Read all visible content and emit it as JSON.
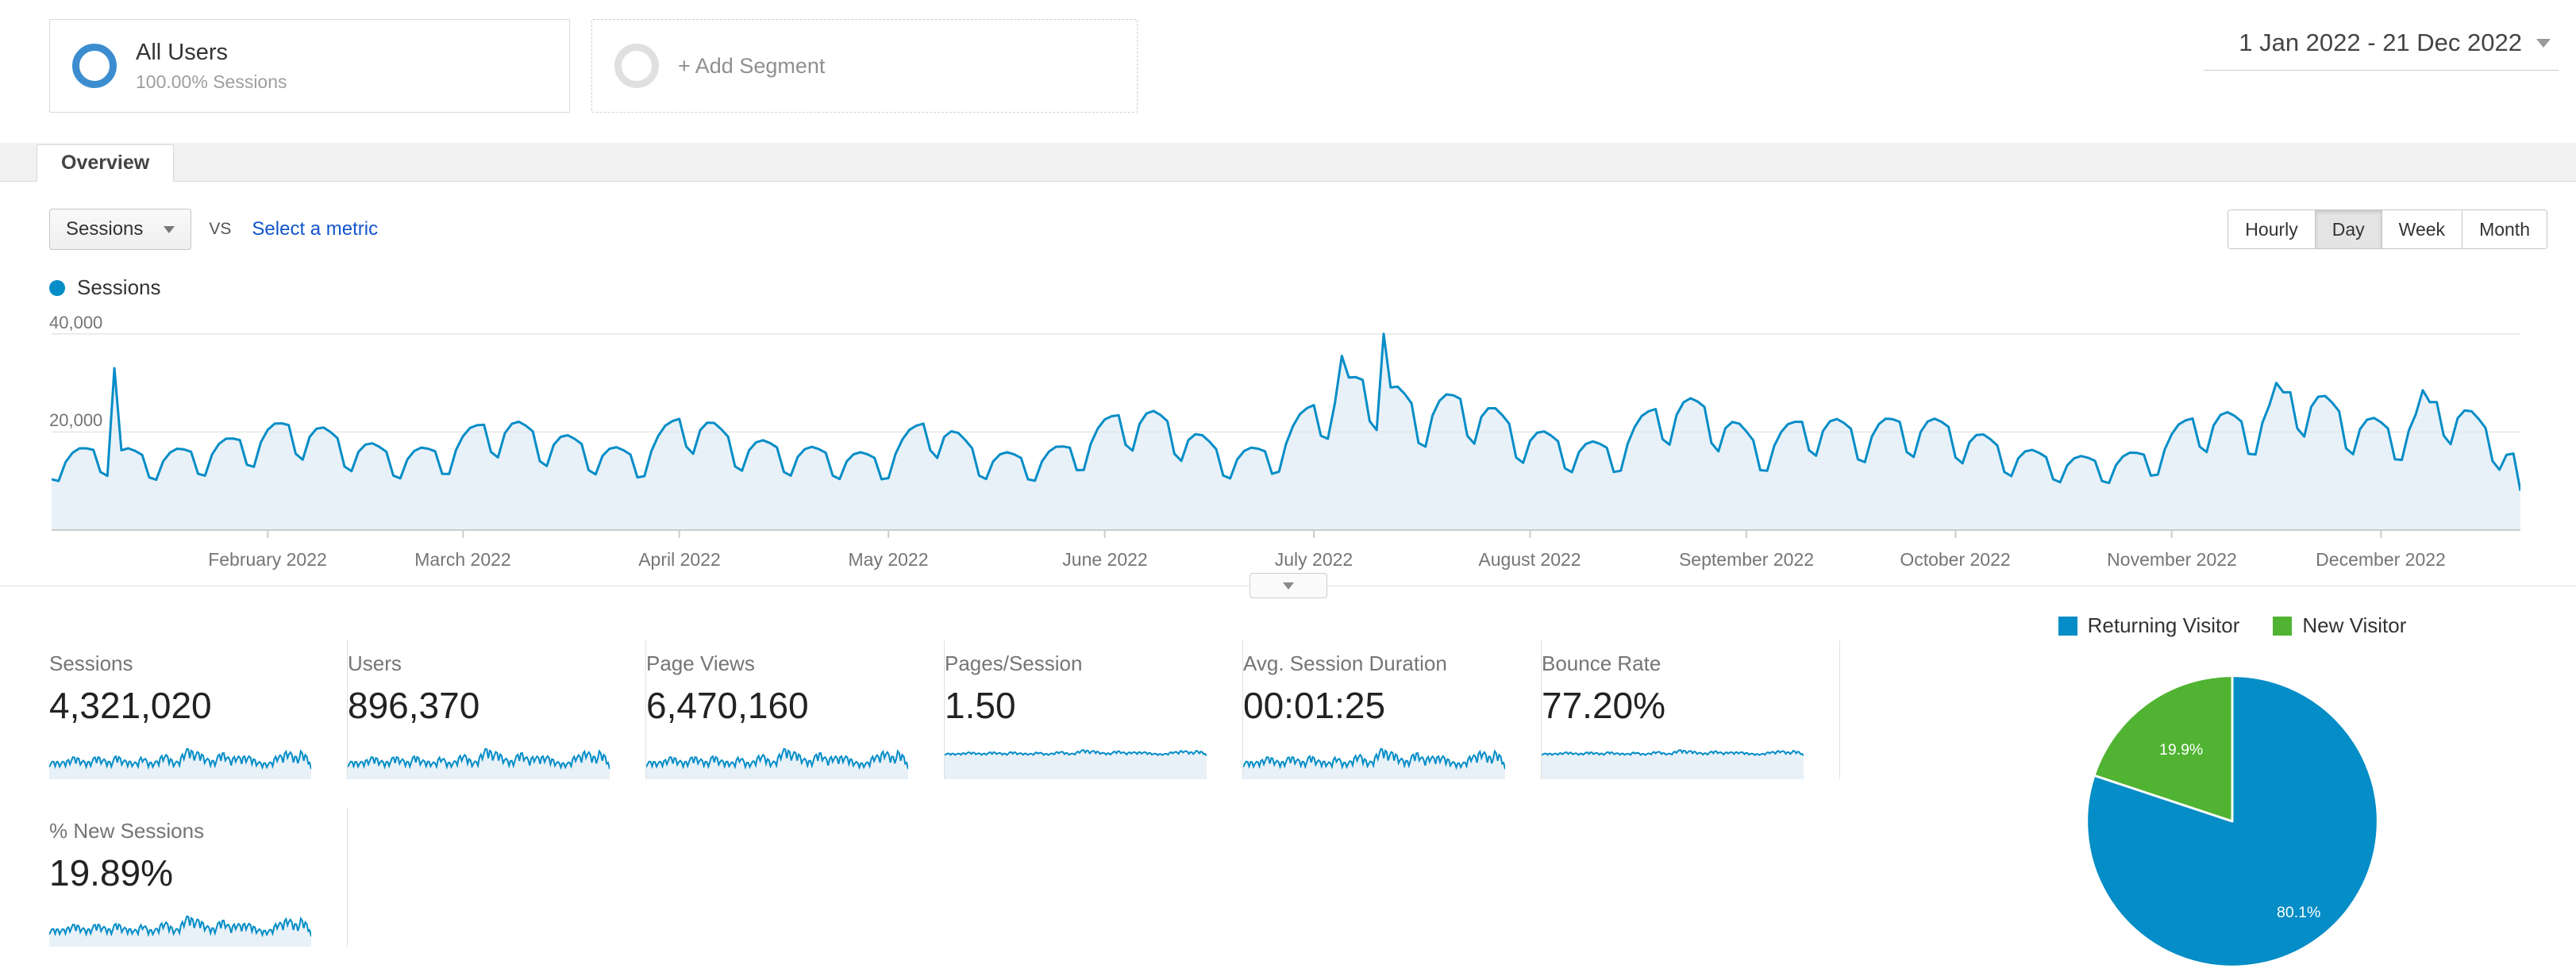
{
  "colors": {
    "accent_blue": "#058dc7",
    "accent_green": "#50b432",
    "chart_fill": "#e8f1f8",
    "segment_circle_blue": "#3c8dcf"
  },
  "header": {
    "segment": {
      "title": "All Users",
      "subtitle": "100.00% Sessions"
    },
    "add_segment_label": "+ Add Segment",
    "date_range": "1 Jan 2022 - 21 Dec 2022"
  },
  "tabs": {
    "overview": "Overview"
  },
  "toolbar": {
    "metric_selector_value": "Sessions",
    "vs_label": "VS",
    "select_metric_label": "Select a metric",
    "granularity": [
      {
        "label": "Hourly",
        "active": false
      },
      {
        "label": "Day",
        "active": true
      },
      {
        "label": "Week",
        "active": false
      },
      {
        "label": "Month",
        "active": false
      }
    ]
  },
  "chart_data": [
    {
      "type": "line",
      "series_name": "Sessions",
      "x_tick_labels": [
        "February 2022",
        "March 2022",
        "April 2022",
        "May 2022",
        "June 2022",
        "July 2022",
        "August 2022",
        "September 2022",
        "October 2022",
        "November 2022",
        "December 2022"
      ],
      "month_start_days": [
        31,
        59,
        90,
        120,
        151,
        181,
        212,
        243,
        273,
        304,
        334
      ],
      "total_days": 355,
      "y_ticks": [
        20000,
        40000
      ],
      "y_tick_labels": [
        "20,000",
        "40,000"
      ],
      "ylim": [
        0,
        44000
      ],
      "weekly_values": [
        14000,
        16000,
        14500,
        15500,
        18000,
        21000,
        17500,
        15000,
        15500,
        21500,
        19000,
        16500,
        14500,
        23000,
        17500,
        16000,
        15000,
        14000,
        22000,
        15000,
        14000,
        16500,
        23500,
        21000,
        15000,
        15500,
        26000,
        30000,
        24000,
        26000,
        20000,
        17000,
        16000,
        25000,
        24000,
        16500,
        22000,
        19500,
        21500,
        20000,
        16000,
        14000,
        13500,
        15000,
        23000,
        21000,
        28000,
        22500,
        19500,
        26000,
        19000,
        9000
      ],
      "weekday_pattern": [
        0.74,
        0.7,
        0.95,
        1.06,
        1.1,
        1.08,
        1.04
      ],
      "spikes": [
        {
          "day": 9,
          "value": 33000
        },
        {
          "day": 185,
          "value": 35500
        },
        {
          "day": 191,
          "value": 40000
        },
        {
          "day": 319,
          "value": 30000
        },
        {
          "day": 340,
          "value": 28500
        },
        {
          "day": 354,
          "value": 8000
        }
      ]
    },
    {
      "type": "pie",
      "legend": [
        {
          "label": "Returning Visitor",
          "color": "#058dc7"
        },
        {
          "label": "New Visitor",
          "color": "#50b432"
        }
      ],
      "slices": [
        {
          "label": "Returning Visitor",
          "value": 80.1,
          "display": "80.1%",
          "color": "#058dc7",
          "label_radius": 0.78
        },
        {
          "label": "New Visitor",
          "value": 19.9,
          "display": "19.9%",
          "color": "#50b432",
          "label_radius": 0.6
        }
      ]
    }
  ],
  "metric_cards": [
    {
      "title": "Sessions",
      "value": "4,321,020",
      "spark": "spiky"
    },
    {
      "title": "Users",
      "value": "896,370",
      "spark": "spiky"
    },
    {
      "title": "Page Views",
      "value": "6,470,160",
      "spark": "spiky"
    },
    {
      "title": "Pages/Session",
      "value": "1.50",
      "spark": "flat"
    },
    {
      "title": "Avg. Session Duration",
      "value": "00:01:25",
      "spark": "spiky"
    },
    {
      "title": "Bounce Rate",
      "value": "77.20%",
      "spark": "flat"
    },
    {
      "title": "% New Sessions",
      "value": "19.89%",
      "spark": "spiky"
    }
  ]
}
